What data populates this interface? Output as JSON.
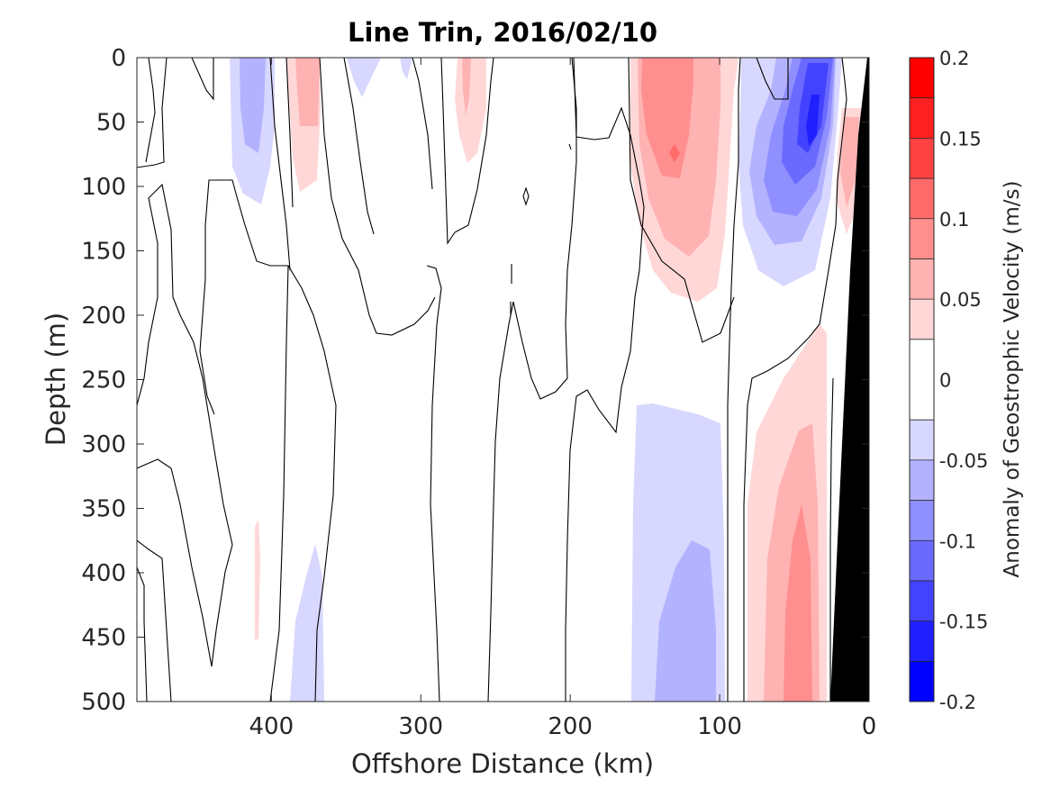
{
  "chart_data": {
    "type": "heatmap",
    "subtype": "filled-contour",
    "title": "Line Trin, 2016/02/10",
    "xlabel": "Offshore Distance (km)",
    "ylabel": "Depth (m)",
    "xlim": [
      490,
      0
    ],
    "x_reversed": true,
    "ylim": [
      0,
      500
    ],
    "y_reversed": true,
    "x_ticks": [
      400,
      300,
      200,
      100,
      0
    ],
    "y_ticks": [
      0,
      50,
      100,
      150,
      200,
      250,
      300,
      350,
      400,
      450,
      500
    ],
    "colorbar": {
      "label": "Anomaly of Geostrophic Velocity (m/s)",
      "range": [
        -0.2,
        0.2
      ],
      "levels": [
        -0.2,
        -0.175,
        -0.15,
        -0.125,
        -0.1,
        -0.075,
        -0.05,
        -0.025,
        0.025,
        0.05,
        0.075,
        0.1,
        0.125,
        0.15,
        0.175,
        0.2
      ],
      "tick_labels": [
        "0.2",
        "0.15",
        "0.1",
        "0.05",
        "0",
        "-0.05",
        "-0.1",
        "-0.15",
        "-0.2"
      ],
      "tick_values": [
        0.2,
        0.15,
        0.1,
        0.05,
        0,
        -0.05,
        -0.1,
        -0.15,
        -0.2
      ],
      "colors": [
        "#0000ff",
        "#2020ff",
        "#4343ff",
        "#6a6aff",
        "#8f8fff",
        "#b2b2ff",
        "#d7d7ff",
        "#ffffff",
        "#ffd7d7",
        "#ffb2b2",
        "#ff8f8f",
        "#ff6a6a",
        "#ff4343",
        "#ff2020",
        "#ff0000"
      ]
    },
    "features": [
      {
        "name": "negative anomaly",
        "x_range": [
          395,
          420
        ],
        "depth_range": [
          0,
          110
        ],
        "peak": -0.06
      },
      {
        "name": "positive anomaly",
        "x_range": [
          350,
          380
        ],
        "depth_range": [
          0,
          105
        ],
        "peak": 0.04
      },
      {
        "name": "negative anomaly",
        "x_range": [
          330,
          355
        ],
        "depth_range": [
          0,
          30
        ],
        "peak": -0.03
      },
      {
        "name": "negative anomaly",
        "x_range": [
          300,
          310
        ],
        "depth_range": [
          0,
          20
        ],
        "peak": -0.03
      },
      {
        "name": "positive anomaly",
        "x_range": [
          255,
          290
        ],
        "depth_range": [
          0,
          85
        ],
        "peak": 0.04
      },
      {
        "name": "positive anomaly",
        "x_range": [
          70,
          160
        ],
        "depth_range": [
          0,
          185
        ],
        "peak": 0.11
      },
      {
        "name": "negative anomaly",
        "x_range": [
          20,
          85
        ],
        "depth_range": [
          0,
          175
        ],
        "peak": -0.17
      },
      {
        "name": "positive anomaly",
        "x_range": [
          10,
          30
        ],
        "depth_range": [
          40,
          190
        ],
        "peak": 0.06
      },
      {
        "name": "positive anomaly",
        "x_range": [
          30,
          95
        ],
        "depth_range": [
          210,
          500
        ],
        "peak": 0.06
      },
      {
        "name": "negative anomaly",
        "x_range": [
          95,
          175
        ],
        "depth_range": [
          270,
          500
        ],
        "peak": -0.08
      },
      {
        "name": "negative anomaly",
        "x_range": [
          370,
          395
        ],
        "depth_range": [
          375,
          500
        ],
        "peak": -0.04
      },
      {
        "name": "positive anomaly",
        "x_range": [
          408,
          413
        ],
        "depth_range": [
          355,
          455
        ],
        "peak": 0.03
      }
    ],
    "bathymetry": {
      "color": "#000000",
      "bottom_x": [
        [
          0,
          0
        ],
        [
          30,
          500
        ]
      ]
    }
  }
}
